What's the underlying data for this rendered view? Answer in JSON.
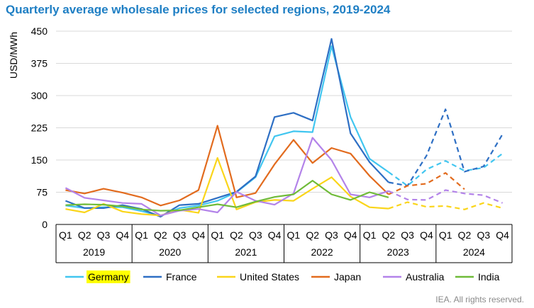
{
  "chart_data": {
    "type": "line",
    "title": "Quarterly average wholesale prices for selected regions, 2019-2024",
    "ylabel": "USD/MWh",
    "xlabel": "",
    "ylim": [
      0,
      450
    ],
    "yticks": [
      "0",
      "75",
      "150",
      "225",
      "300",
      "375",
      "450"
    ],
    "quarters": [
      "Q1",
      "Q2",
      "Q3",
      "Q4"
    ],
    "years": [
      "2019",
      "2020",
      "2021",
      "2022",
      "2023",
      "2024"
    ],
    "x": [
      "2019 Q1",
      "2019 Q2",
      "2019 Q3",
      "2019 Q4",
      "2020 Q1",
      "2020 Q2",
      "2020 Q3",
      "2020 Q4",
      "2021 Q1",
      "2021 Q2",
      "2021 Q3",
      "2021 Q4",
      "2022 Q1",
      "2022 Q2",
      "2022 Q3",
      "2022 Q4",
      "2023 Q1",
      "2023 Q2",
      "2023 Q3",
      "2023 Q4",
      "2024 Q1",
      "2024 Q2",
      "2024 Q3",
      "2024 Q4"
    ],
    "grid": true,
    "legend_position": "bottom",
    "dashed_from": "2023 Q2",
    "series": [
      {
        "name": "Germany",
        "color": "#41c6f0",
        "highlighted": true,
        "values": [
          44,
          38,
          40,
          40,
          31,
          20,
          38,
          44,
          55,
          75,
          110,
          205,
          217,
          215,
          415,
          250,
          153,
          122,
          90,
          128,
          148,
          125,
          132,
          165
        ]
      },
      {
        "name": "France",
        "color": "#2e6fc4",
        "highlighted": false,
        "values": [
          55,
          38,
          38,
          45,
          36,
          18,
          45,
          48,
          62,
          76,
          112,
          250,
          260,
          242,
          432,
          212,
          145,
          98,
          90,
          160,
          268,
          123,
          135,
          210
        ]
      },
      {
        "name": "United States",
        "color": "#fad51a",
        "highlighted": false,
        "values": [
          36,
          28,
          48,
          30,
          24,
          21,
          34,
          27,
          155,
          35,
          52,
          57,
          55,
          83,
          110,
          65,
          40,
          37,
          52,
          41,
          43,
          35,
          50,
          38
        ]
      },
      {
        "name": "Japan",
        "color": "#e26b1e",
        "highlighted": false,
        "values": [
          80,
          72,
          83,
          74,
          63,
          44,
          56,
          80,
          230,
          63,
          73,
          140,
          197,
          143,
          178,
          165,
          113,
          70,
          90,
          95,
          120,
          82,
          null,
          null
        ]
      },
      {
        "name": "Australia",
        "color": "#b383e9",
        "highlighted": false,
        "values": [
          85,
          62,
          56,
          50,
          48,
          21,
          32,
          36,
          28,
          76,
          55,
          46,
          72,
          202,
          150,
          70,
          63,
          78,
          58,
          57,
          80,
          72,
          68,
          50
        ]
      },
      {
        "name": "India",
        "color": "#6fbb38",
        "highlighted": false,
        "values": [
          45,
          47,
          46,
          42,
          35,
          32,
          33,
          40,
          47,
          40,
          53,
          64,
          70,
          102,
          70,
          57,
          75,
          63,
          null,
          null,
          null,
          null,
          null,
          null
        ]
      }
    ]
  },
  "footer": {
    "credit": "IEA. All rights reserved."
  }
}
